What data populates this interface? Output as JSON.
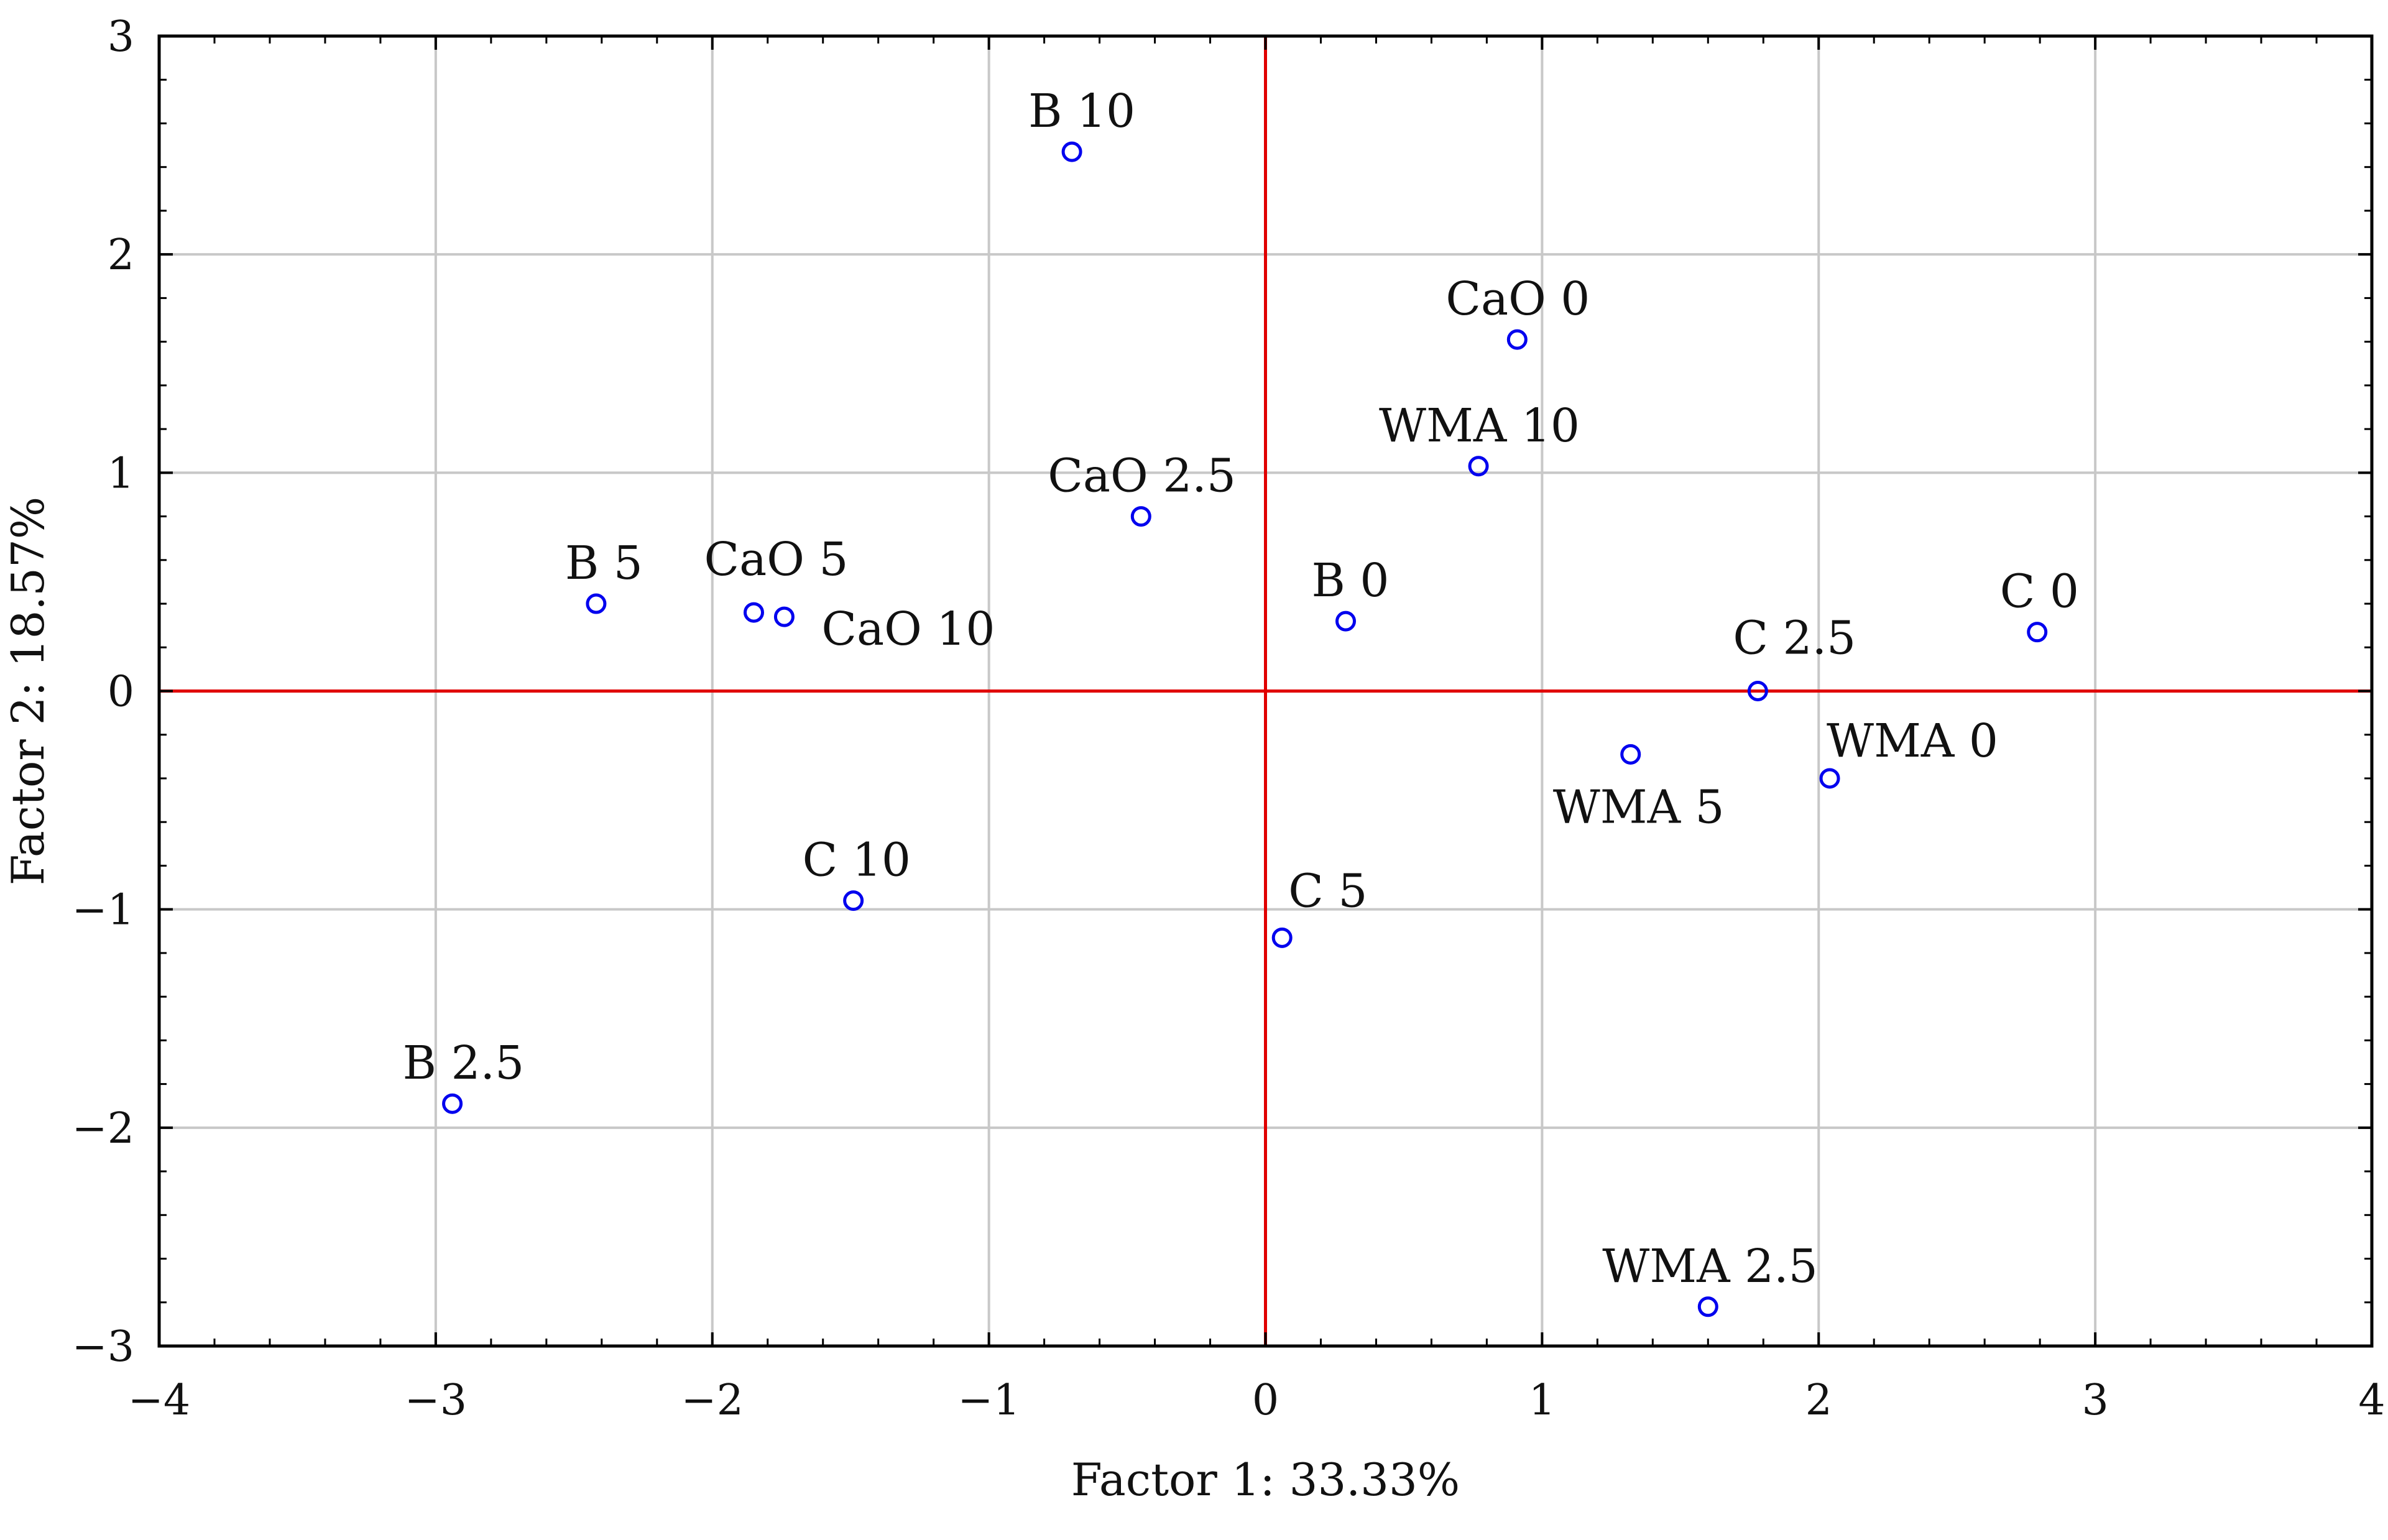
{
  "chart_data": {
    "type": "scatter",
    "title": "",
    "xlabel": "Factor 1: 33.33%",
    "ylabel": "Factor 2: 18.57%",
    "xlim": [
      -4,
      4
    ],
    "ylim": [
      -3,
      3
    ],
    "xticks": [
      -4,
      -3,
      -2,
      -1,
      0,
      1,
      2,
      3,
      4
    ],
    "yticks": [
      -3,
      -2,
      -1,
      0,
      1,
      2,
      3
    ],
    "xtick_labels": [
      "−4",
      "−3",
      "−2",
      "−1",
      "0",
      "1",
      "2",
      "3",
      "4"
    ],
    "ytick_labels": [
      "−3",
      "−2",
      "−1",
      "0",
      "1",
      "2",
      "3"
    ],
    "grid": true,
    "reference_lines": {
      "x": 0,
      "y": 0,
      "color": "#e00000"
    },
    "marker": {
      "shape": "open-circle",
      "color": "#0000ee"
    },
    "points": [
      {
        "label": "B 10",
        "x": -0.7,
        "y": 2.47
      },
      {
        "label": "CaO 0",
        "x": 0.91,
        "y": 1.61
      },
      {
        "label": "WMA 10",
        "x": 0.77,
        "y": 1.03
      },
      {
        "label": "CaO 2.5",
        "x": -0.45,
        "y": 0.8
      },
      {
        "label": "B 5",
        "x": -2.42,
        "y": 0.4
      },
      {
        "label": "CaO 5",
        "x": -1.85,
        "y": 0.36
      },
      {
        "label": "CaO 10",
        "x": -1.74,
        "y": 0.34
      },
      {
        "label": "B 0",
        "x": 0.29,
        "y": 0.32
      },
      {
        "label": "C 0",
        "x": 2.79,
        "y": 0.27
      },
      {
        "label": "C 2.5",
        "x": 1.78,
        "y": 0.0
      },
      {
        "label": "WMA 5",
        "x": 1.32,
        "y": -0.29
      },
      {
        "label": "WMA 0",
        "x": 2.04,
        "y": -0.4
      },
      {
        "label": "C 10",
        "x": -1.49,
        "y": -0.96
      },
      {
        "label": "C 5",
        "x": 0.06,
        "y": -1.13
      },
      {
        "label": "B 2.5",
        "x": -2.94,
        "y": -1.89
      },
      {
        "label": "WMA 2.5",
        "x": 1.6,
        "y": -2.82
      }
    ]
  }
}
